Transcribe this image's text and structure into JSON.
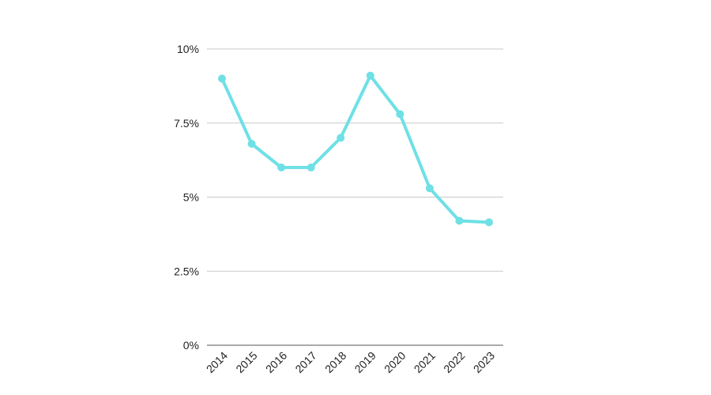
{
  "chart_data": {
    "type": "line",
    "title": "",
    "xlabel": "",
    "ylabel": "",
    "categories": [
      "2014",
      "2015",
      "2016",
      "2017",
      "2018",
      "2019",
      "2020",
      "2021",
      "2022",
      "2023"
    ],
    "series": [
      {
        "values": [
          9.0,
          6.8,
          6.0,
          6.0,
          7.0,
          9.1,
          7.8,
          5.3,
          4.2,
          4.15
        ],
        "color": "#6ee0e6"
      }
    ],
    "ylim": [
      0,
      10
    ],
    "yticks": [
      {
        "value": 0,
        "label": "0%"
      },
      {
        "value": 2.5,
        "label": "2.5%"
      },
      {
        "value": 5,
        "label": "5%"
      },
      {
        "value": 7.5,
        "label": "7.5%"
      },
      {
        "value": 10,
        "label": "10%"
      }
    ],
    "grid": true,
    "legend": "none"
  }
}
